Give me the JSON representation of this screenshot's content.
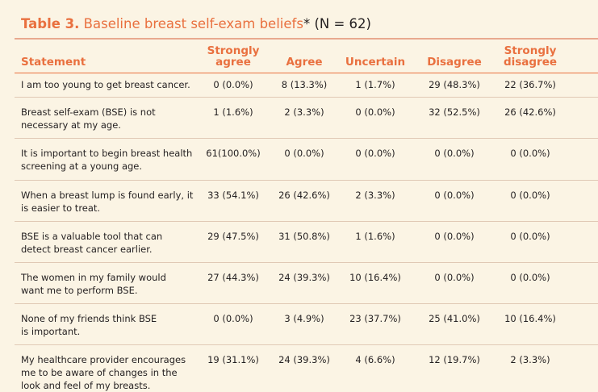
{
  "table": {
    "number": "Table 3.",
    "title": "Baseline breast self-exam beliefs",
    "title_suffix": "* (N = 62)",
    "headers": {
      "statement": "Statement",
      "strongly_agree_l1": "Strongly",
      "strongly_agree_l2": "agree",
      "agree": "Agree",
      "uncertain": "Uncertain",
      "disagree": "Disagree",
      "strongly_disagree_l1": "Strongly",
      "strongly_disagree_l2": "disagree"
    },
    "rows": [
      {
        "statement": "I am too young to get breast cancer.",
        "values": [
          "0 (0.0%)",
          "8 (13.3%)",
          "1 (1.7%)",
          "29 (48.3%)",
          "22 (36.7%)"
        ]
      },
      {
        "statement": "Breast self-exam (BSE) is not necessary at my age.",
        "values": [
          "1 (1.6%)",
          "2 (3.3%)",
          "0 (0.0%)",
          "32 (52.5%)",
          "26 (42.6%)"
        ]
      },
      {
        "statement": "It is important to begin breast health screening at a young age.",
        "values": [
          "61(100.0%)",
          "0 (0.0%)",
          "0 (0.0%)",
          "0 (0.0%)",
          "0 (0.0%)"
        ]
      },
      {
        "statement": "When a breast lump is found early, it is easier to treat.",
        "values": [
          "33 (54.1%)",
          "26 (42.6%)",
          "2 (3.3%)",
          "0 (0.0%)",
          "0 (0.0%)"
        ]
      },
      {
        "statement": "BSE is a valuable tool that can detect breast cancer earlier.",
        "values": [
          "29 (47.5%)",
          "31 (50.8%)",
          "1 (1.6%)",
          "0 (0.0%)",
          "0 (0.0%)"
        ]
      },
      {
        "statement": "The women in my family would want me to perform BSE.",
        "values": [
          "27 (44.3%)",
          "24 (39.3%)",
          "10 (16.4%)",
          "0 (0.0%)",
          "0 (0.0%)"
        ]
      },
      {
        "statement": "None of my friends think BSE is important.",
        "values": [
          "0 (0.0%)",
          "3 (4.9%)",
          "23 (37.7%)",
          "25 (41.0%)",
          "10 (16.4%)"
        ]
      },
      {
        "statement": "My healthcare provider encourages me to be aware of changes in the look and feel of my breasts.",
        "values": [
          "19 (31.1%)",
          "24 (39.3%)",
          "4 (6.6%)",
          "12 (19.7%)",
          "2 (3.3%)"
        ]
      }
    ]
  },
  "colors": {
    "accent": "#e9703f",
    "background": "#fbf4e4",
    "text": "#231f20"
  }
}
